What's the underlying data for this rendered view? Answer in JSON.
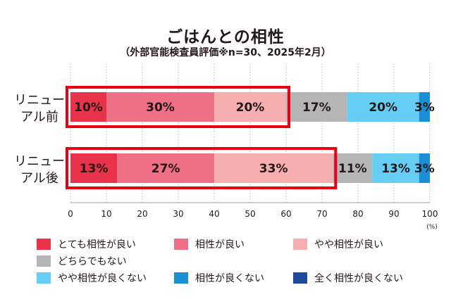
{
  "chart_data": {
    "type": "bar",
    "orientation": "horizontal",
    "stacked": true,
    "title": "ごはんとの相性",
    "subtitle": "（外部官能検査員評価※n=30、2025年2月）",
    "categories": [
      "リニューアル前",
      "リニューアル後"
    ],
    "category_label_lines": [
      [
        "リニュー",
        "アル前"
      ],
      [
        "リニュー",
        "アル後"
      ]
    ],
    "xlim": [
      0,
      100
    ],
    "x_ticks": [
      0,
      10,
      20,
      30,
      40,
      50,
      60,
      70,
      80,
      90,
      100
    ],
    "unit_label": "(%)",
    "grid": true,
    "legend_position": "bottom",
    "series": [
      {
        "name": "とても相性が良い",
        "color": "#e8334a",
        "values": [
          10,
          13
        ],
        "labels": [
          "10%",
          "13%"
        ]
      },
      {
        "name": "相性が良い",
        "color": "#ee6f86",
        "values": [
          30,
          27
        ],
        "labels": [
          "30%",
          "27%"
        ]
      },
      {
        "name": "やや相性が良い",
        "color": "#f6aeb0",
        "values": [
          20,
          33
        ],
        "labels": [
          "20%",
          "33%"
        ]
      },
      {
        "name": "どちらでもない",
        "color": "#b5b5b6",
        "values": [
          17,
          11
        ],
        "labels": [
          "17%",
          "11%"
        ]
      },
      {
        "name": "やや相性が良くない",
        "color": "#66cef5",
        "values": [
          20,
          13
        ],
        "labels": [
          "20%",
          "13%"
        ]
      },
      {
        "name": "相性が良くない",
        "color": "#1a8fd6",
        "values": [
          3,
          3
        ],
        "labels": [
          "3%",
          "3%"
        ]
      },
      {
        "name": "全く相性が良くない",
        "color": "#1d4a9c",
        "values": [
          0,
          0
        ],
        "labels": [
          "",
          ""
        ]
      }
    ],
    "highlight_color": "#e60012",
    "highlighted_series_count": 3
  }
}
